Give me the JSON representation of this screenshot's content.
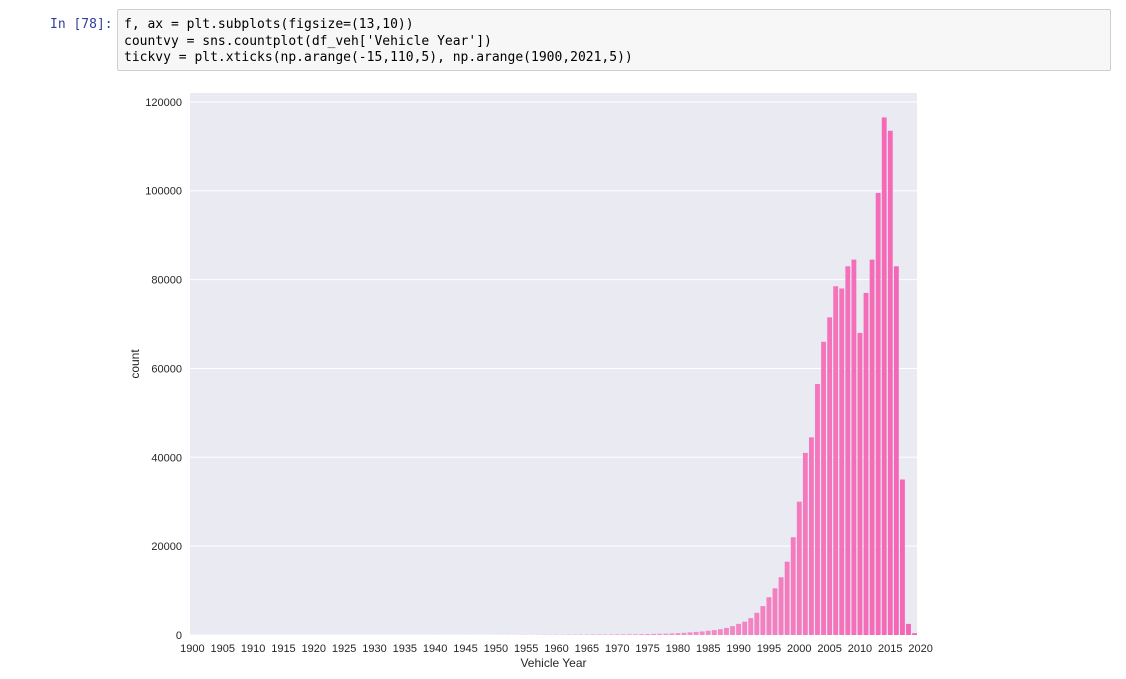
{
  "cell": {
    "prompt": "In [78]:",
    "code_lines": [
      "f, ax = plt.subplots(figsize=(13,10))",
      "countvy = sns.countplot(df_veh['Vehicle Year'])",
      "tickvy = plt.xticks(np.arange(-15,110,5), np.arange(1900,2021,5))"
    ]
  },
  "chart_data": {
    "type": "bar",
    "xlabel": "Vehicle Year",
    "ylabel": "count",
    "ylim": [
      0,
      122000
    ],
    "yticks": [
      0,
      20000,
      40000,
      60000,
      80000,
      100000,
      120000
    ],
    "xtick_labels": [
      "1900",
      "1905",
      "1910",
      "1915",
      "1920",
      "1925",
      "1930",
      "1935",
      "1940",
      "1945",
      "1950",
      "1955",
      "1960",
      "1965",
      "1970",
      "1975",
      "1980",
      "1985",
      "1990",
      "1995",
      "2000",
      "2005",
      "2010",
      "2015",
      "2020"
    ],
    "grid": true,
    "categories": [
      "1900",
      "1901",
      "1902",
      "1903",
      "1904",
      "1905",
      "1906",
      "1907",
      "1908",
      "1909",
      "1910",
      "1911",
      "1912",
      "1913",
      "1914",
      "1915",
      "1916",
      "1917",
      "1918",
      "1919",
      "1920",
      "1921",
      "1922",
      "1923",
      "1924",
      "1925",
      "1926",
      "1927",
      "1928",
      "1929",
      "1930",
      "1931",
      "1932",
      "1933",
      "1934",
      "1935",
      "1936",
      "1937",
      "1938",
      "1939",
      "1940",
      "1941",
      "1942",
      "1943",
      "1944",
      "1945",
      "1946",
      "1947",
      "1948",
      "1949",
      "1950",
      "1951",
      "1952",
      "1953",
      "1954",
      "1955",
      "1956",
      "1957",
      "1958",
      "1959",
      "1960",
      "1961",
      "1962",
      "1963",
      "1964",
      "1965",
      "1966",
      "1967",
      "1968",
      "1969",
      "1970",
      "1971",
      "1972",
      "1973",
      "1974",
      "1975",
      "1976",
      "1977",
      "1978",
      "1979",
      "1980",
      "1981",
      "1982",
      "1983",
      "1984",
      "1985",
      "1986",
      "1987",
      "1988",
      "1989",
      "1990",
      "1991",
      "1992",
      "1993",
      "1994",
      "1995",
      "1996",
      "1997",
      "1998",
      "1999",
      "2000",
      "2001",
      "2002",
      "2003",
      "2004",
      "2005",
      "2006",
      "2007",
      "2008",
      "2009",
      "2010",
      "2011",
      "2012",
      "2013",
      "2014",
      "2015",
      "2016",
      "2017",
      "2018",
      "2019"
    ],
    "values": [
      10,
      0,
      0,
      0,
      0,
      0,
      0,
      0,
      0,
      0,
      10,
      0,
      0,
      0,
      0,
      0,
      0,
      0,
      0,
      0,
      10,
      0,
      0,
      0,
      0,
      10,
      0,
      0,
      0,
      0,
      10,
      0,
      0,
      0,
      0,
      10,
      0,
      0,
      0,
      0,
      20,
      0,
      0,
      0,
      0,
      20,
      0,
      0,
      0,
      0,
      30,
      20,
      30,
      30,
      40,
      50,
      40,
      50,
      60,
      60,
      70,
      70,
      80,
      90,
      90,
      100,
      110,
      120,
      120,
      130,
      150,
      160,
      170,
      180,
      200,
      220,
      250,
      280,
      300,
      350,
      420,
      500,
      600,
      700,
      800,
      950,
      1100,
      1300,
      1600,
      2000,
      2500,
      3000,
      3800,
      5000,
      6500,
      8500,
      10500,
      13000,
      16500,
      22000,
      30000,
      41000,
      44500,
      56500,
      66000,
      71500,
      78500,
      78000,
      83000,
      84500,
      68000,
      77000,
      84500,
      99500,
      116500,
      113500,
      83000,
      35000,
      2500,
      400
    ],
    "colors": {
      "start": "#ecebf2",
      "end": "#f564b4",
      "plot_background": "#eaeaf2",
      "grid": "#ffffff",
      "text": "#262626"
    }
  }
}
